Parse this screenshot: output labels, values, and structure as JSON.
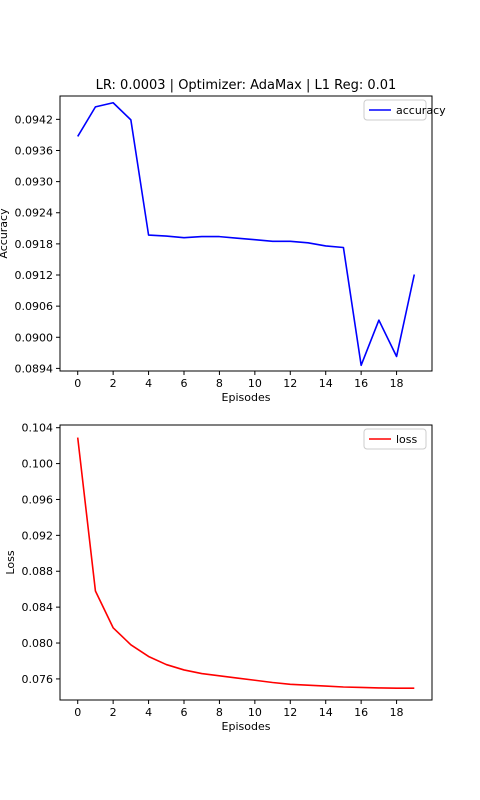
{
  "chart_data": [
    {
      "type": "line",
      "title": "LR: 0.0003 | Optimizer: AdaMax | L1 Reg: 0.01",
      "xlabel": "Episodes",
      "ylabel": "Accuracy",
      "xlim": [
        -1,
        20
      ],
      "ylim": [
        0.08935,
        0.09465
      ],
      "xticks": [
        0,
        2,
        4,
        6,
        8,
        10,
        12,
        14,
        16,
        18
      ],
      "xtick_labels": [
        "0",
        "2",
        "4",
        "6",
        "8",
        "10",
        "12",
        "14",
        "16",
        "18"
      ],
      "yticks": [
        0.0894,
        0.09,
        0.0906,
        0.0912,
        0.0918,
        0.0924,
        0.093,
        0.0936,
        0.0942
      ],
      "ytick_labels": [
        "0.0894",
        "0.0900",
        "0.0906",
        "0.0912",
        "0.0918",
        "0.0924",
        "0.0930",
        "0.0936",
        "0.0942"
      ],
      "grid": false,
      "legend": "upper right",
      "series": [
        {
          "name": "accuracy",
          "color": "#0000ff",
          "x": [
            0,
            1,
            2,
            3,
            4,
            5,
            6,
            7,
            8,
            9,
            10,
            11,
            12,
            13,
            14,
            15,
            16,
            17,
            18,
            19
          ],
          "values": [
            0.09387,
            0.09444,
            0.09452,
            0.09419,
            0.09197,
            0.09195,
            0.09192,
            0.09194,
            0.09194,
            0.09191,
            0.09188,
            0.09185,
            0.09185,
            0.09182,
            0.09176,
            0.09173,
            0.08946,
            0.09033,
            0.08963,
            0.09121
          ]
        }
      ]
    },
    {
      "type": "line",
      "title": "",
      "xlabel": "Episodes",
      "ylabel": "Loss",
      "xlim": [
        -1,
        20
      ],
      "ylim": [
        0.07365,
        0.1043
      ],
      "xticks": [
        0,
        2,
        4,
        6,
        8,
        10,
        12,
        14,
        16,
        18
      ],
      "xtick_labels": [
        "0",
        "2",
        "4",
        "6",
        "8",
        "10",
        "12",
        "14",
        "16",
        "18"
      ],
      "yticks": [
        0.076,
        0.08,
        0.084,
        0.088,
        0.092,
        0.096,
        0.1,
        0.104
      ],
      "ytick_labels": [
        "0.076",
        "0.080",
        "0.084",
        "0.088",
        "0.092",
        "0.096",
        "0.100",
        "0.104"
      ],
      "grid": false,
      "legend": "upper right",
      "series": [
        {
          "name": "loss",
          "color": "#ff0000",
          "x": [
            0,
            1,
            2,
            3,
            4,
            5,
            6,
            7,
            8,
            9,
            10,
            11,
            12,
            13,
            14,
            15,
            16,
            17,
            18,
            19
          ],
          "values": [
            0.1029,
            0.0858,
            0.0817,
            0.0798,
            0.0785,
            0.0776,
            0.077,
            0.0766,
            0.07635,
            0.0761,
            0.07585,
            0.0756,
            0.0754,
            0.0753,
            0.0752,
            0.0751,
            0.07505,
            0.075,
            0.07497,
            0.07497
          ]
        }
      ]
    }
  ]
}
